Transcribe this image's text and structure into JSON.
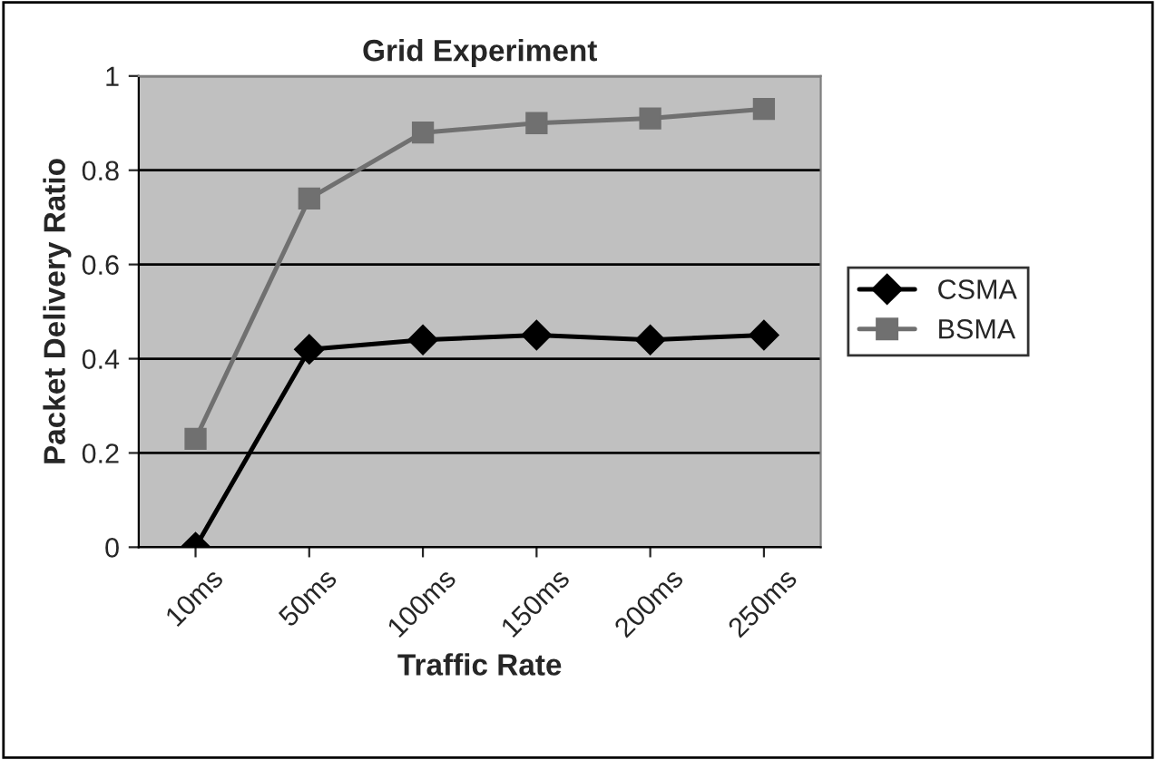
{
  "chart_data": {
    "type": "line",
    "title": "Grid Experiment",
    "xlabel": "Traffic Rate",
    "ylabel": "Packet Delivery Ratio",
    "categories": [
      "10ms",
      "50ms",
      "100ms",
      "150ms",
      "200ms",
      "250ms"
    ],
    "series": [
      {
        "name": "CSMA",
        "color": "#000000",
        "marker": "diamond",
        "values": [
          0,
          0.42,
          0.44,
          0.45,
          0.44,
          0.45
        ]
      },
      {
        "name": "BSMA",
        "color": "#707070",
        "marker": "square",
        "values": [
          0.23,
          0.74,
          0.88,
          0.9,
          0.91,
          0.93
        ]
      }
    ],
    "ylim": [
      0,
      1
    ],
    "yticks": [
      0,
      0.2,
      0.4,
      0.6,
      0.8,
      1
    ],
    "grid": "y",
    "legend": "right"
  }
}
